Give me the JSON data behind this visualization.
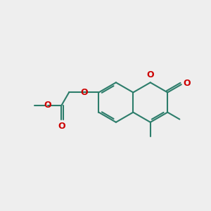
{
  "bg_color": "#eeeeee",
  "bond_color": "#2d7d6b",
  "heteroatom_color": "#cc0000",
  "line_width": 1.5,
  "fig_size": [
    3.0,
    3.0
  ],
  "dpi": 100,
  "xlim": [
    0,
    10
  ],
  "ylim": [
    0,
    10
  ]
}
